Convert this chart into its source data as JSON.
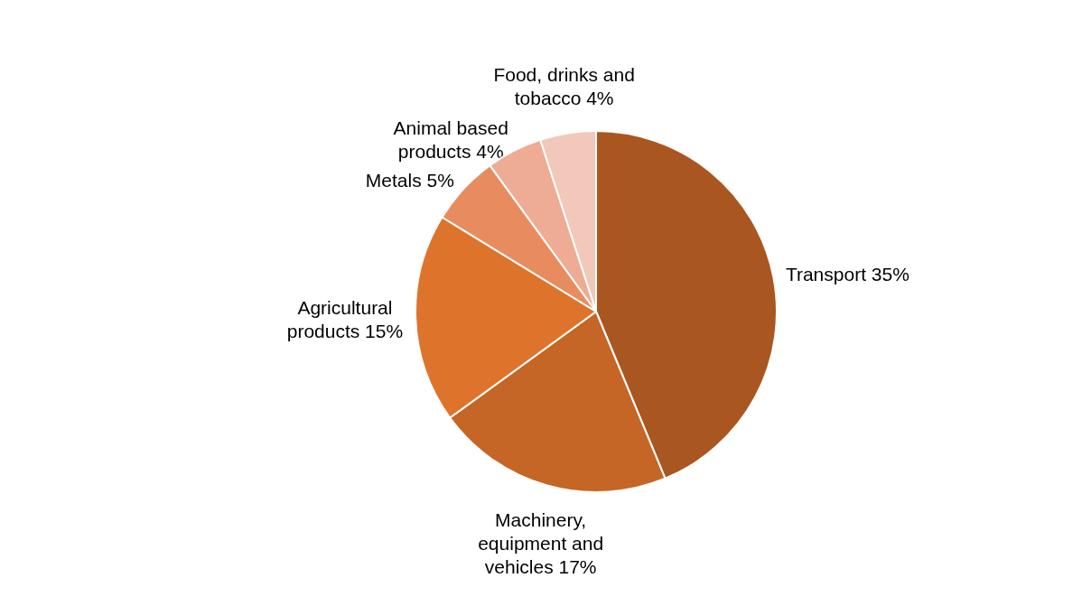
{
  "chart_data": {
    "type": "pie",
    "categories": [
      "Transport",
      "Machinery, equipment and vehicles",
      "Agricultural products",
      "Metals",
      "Animal based products",
      "Food, drinks and tobacco"
    ],
    "values": [
      35,
      17,
      15,
      5,
      4,
      4
    ],
    "value_labels": [
      "35%",
      "17%",
      "15%",
      "5%",
      "4%",
      "4%"
    ],
    "colors": [
      "#aa5620",
      "#c56626",
      "#de742c",
      "#e88c60",
      "#edac93",
      "#f2c8bb"
    ]
  }
}
